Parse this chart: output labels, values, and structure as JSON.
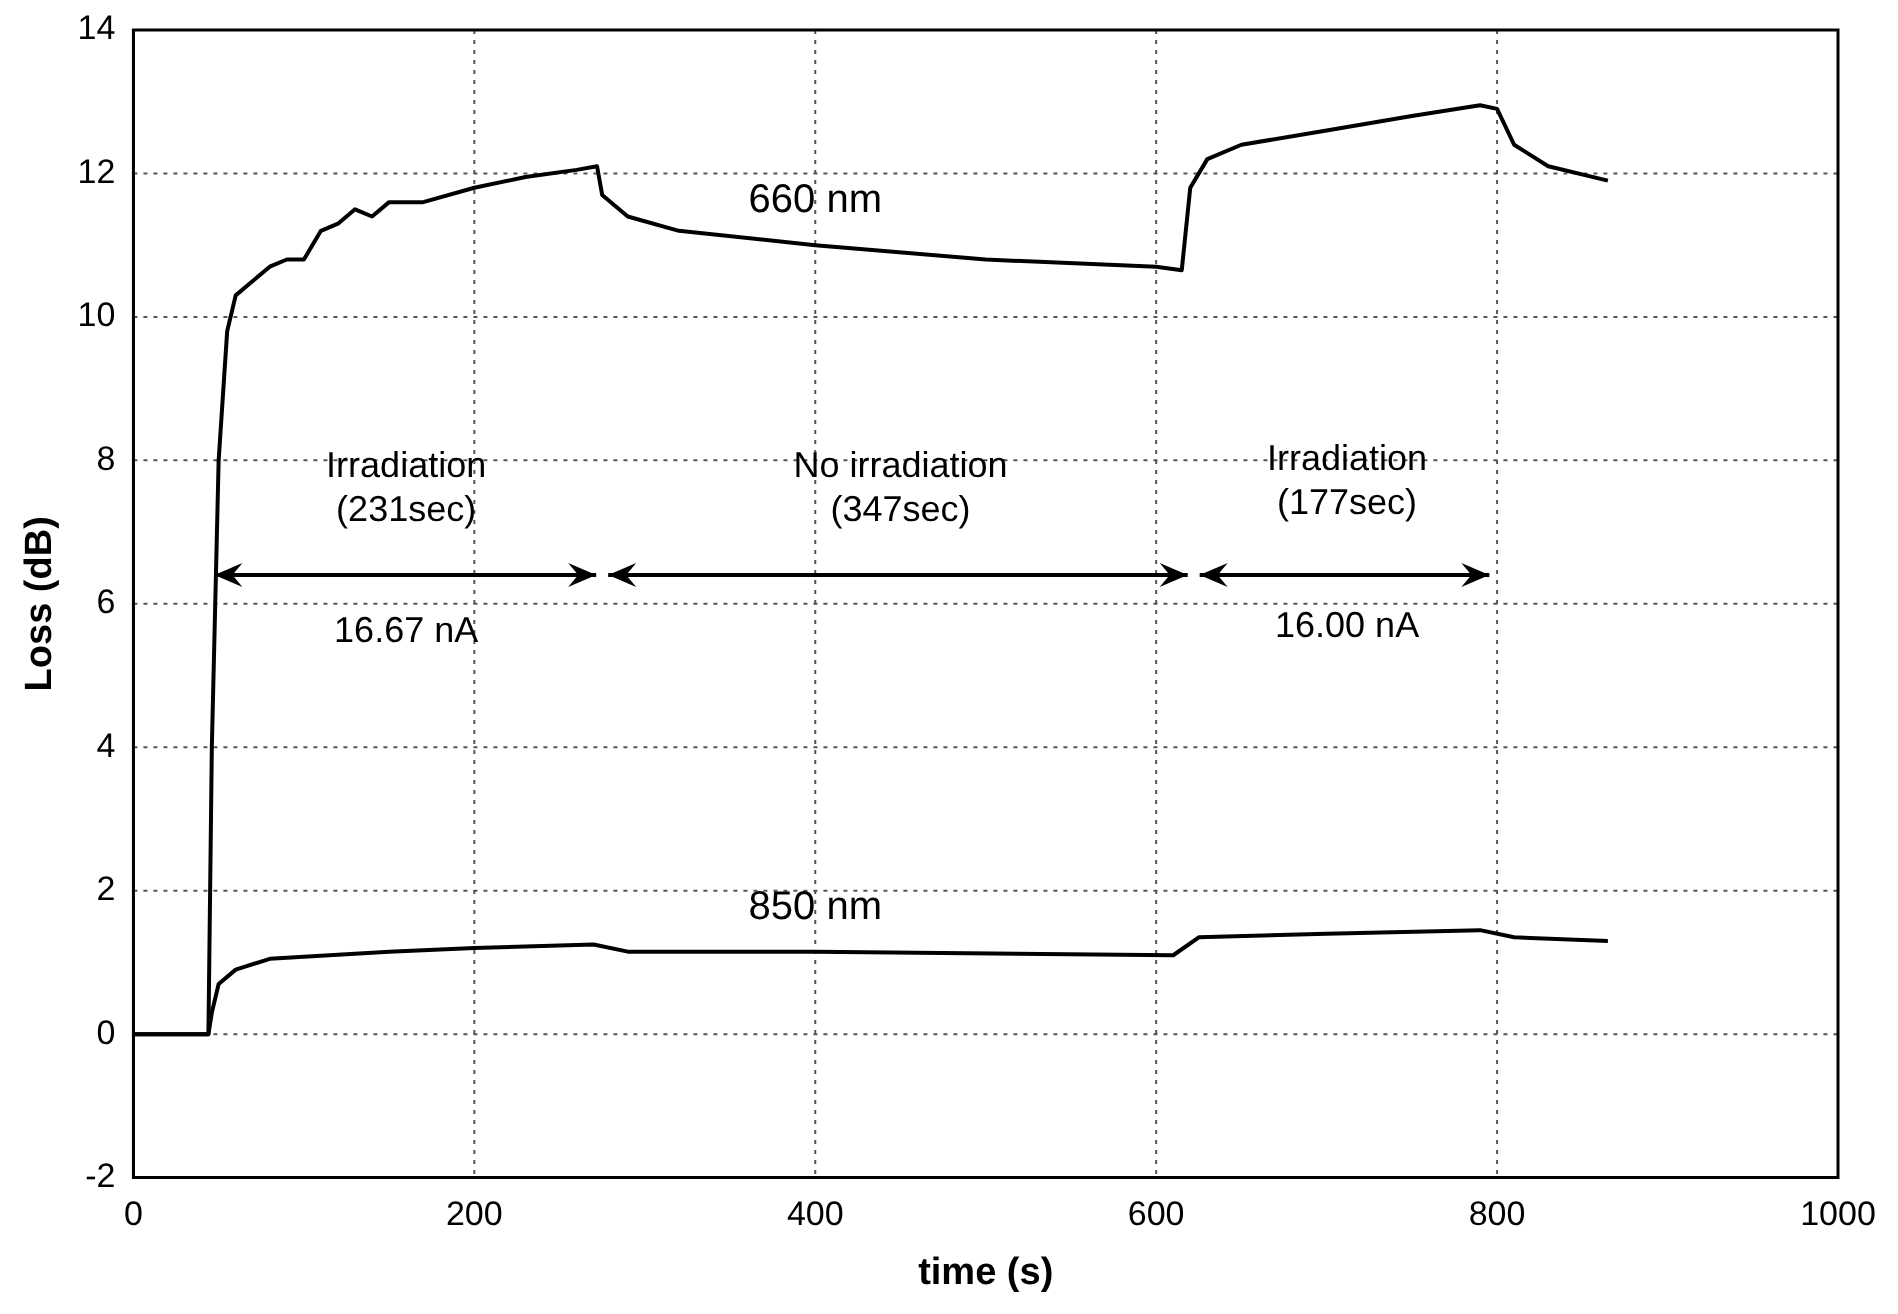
{
  "chart_data": {
    "type": "line",
    "xlabel": "time (s)",
    "ylabel": "Loss (dB)",
    "xlim": [
      0,
      1000
    ],
    "xticks": [
      0,
      200,
      400,
      600,
      800,
      1000
    ],
    "ylim": [
      -2,
      14
    ],
    "yticks": [
      -2,
      0,
      2,
      4,
      6,
      8,
      10,
      12,
      14
    ],
    "grid": true,
    "legend": false,
    "marker": "none",
    "line_style": "solid",
    "series": [
      {
        "name": "660 nm",
        "color": "#000000",
        "x": [
          0,
          44,
          46,
          50,
          55,
          60,
          70,
          80,
          90,
          100,
          110,
          120,
          130,
          140,
          150,
          170,
          200,
          230,
          260,
          272,
          275,
          290,
          320,
          400,
          500,
          600,
          615,
          620,
          630,
          650,
          700,
          750,
          790,
          800,
          810,
          830,
          865
        ],
        "values": [
          0,
          0,
          4,
          8,
          9.8,
          10.3,
          10.5,
          10.7,
          10.8,
          10.8,
          11.2,
          11.3,
          11.5,
          11.4,
          11.6,
          11.6,
          11.8,
          11.95,
          12.05,
          12.1,
          11.7,
          11.4,
          11.2,
          11.0,
          10.8,
          10.7,
          10.65,
          11.8,
          12.2,
          12.4,
          12.6,
          12.8,
          12.95,
          12.9,
          12.4,
          12.1,
          11.9
        ]
      },
      {
        "name": "850 nm",
        "color": "#000000",
        "x": [
          0,
          44,
          46,
          50,
          60,
          80,
          150,
          200,
          270,
          290,
          400,
          610,
          625,
          700,
          790,
          810,
          865
        ],
        "values": [
          0,
          0,
          0.3,
          0.7,
          0.9,
          1.05,
          1.15,
          1.2,
          1.25,
          1.15,
          1.15,
          1.1,
          1.35,
          1.4,
          1.45,
          1.35,
          1.3
        ]
      }
    ],
    "annotations": [
      "Irradiation\n(231sec)",
      "16.67 nA",
      "No irradiation\n(347sec)",
      "Irradiation\n(177sec)",
      "16.00 nA"
    ]
  }
}
